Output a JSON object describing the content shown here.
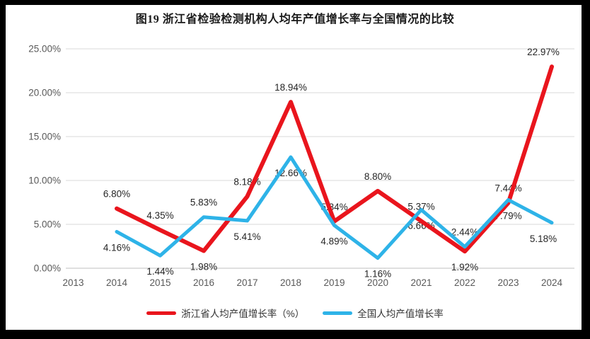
{
  "page": {
    "background": "#ffffff",
    "frame_color": "#000000"
  },
  "chart_data": {
    "type": "line",
    "title": "图19  浙江省检验检测机构人均年产值增长率与全国情况的比较",
    "x_categories": [
      "2013",
      "2014",
      "2015",
      "2016",
      "2017",
      "2018",
      "2019",
      "2020",
      "2021",
      "2022",
      "2023",
      "2024"
    ],
    "y_ticks": [
      "0.00%",
      "5.00%",
      "10.00%",
      "15.00%",
      "20.00%",
      "25.00%"
    ],
    "ylim": [
      0,
      25
    ],
    "grid": "horizontal",
    "legend_position": "bottom",
    "colors": {
      "gridline": "#d9d9d9",
      "axis_line": "#bfbfbf",
      "tick_label": "#595959",
      "data_label": "#262626",
      "title": "#1a1a1a"
    },
    "series": [
      {
        "name": "浙江省人均产值增长率（%）",
        "color": "#e9151d",
        "points": [
          {
            "year": "2014",
            "value": 6.8,
            "label": "6.80%",
            "label_pos": "above"
          },
          {
            "year": "2015",
            "value": 4.35,
            "label": "4.35%",
            "label_pos": "above"
          },
          {
            "year": "2016",
            "value": 1.98,
            "label": "1.98%",
            "label_pos": "below"
          },
          {
            "year": "2017",
            "value": 8.18,
            "label": "8.18%",
            "label_pos": "above"
          },
          {
            "year": "2018",
            "value": 18.94,
            "label": "18.94%",
            "label_pos": "above"
          },
          {
            "year": "2019",
            "value": 5.34,
            "label": "5.34%",
            "label_pos": "above"
          },
          {
            "year": "2020",
            "value": 8.8,
            "label": "8.80%",
            "label_pos": "above"
          },
          {
            "year": "2021",
            "value": 5.37,
            "label": "5.37%",
            "label_pos": "above"
          },
          {
            "year": "2022",
            "value": 1.92,
            "label": "1.92%",
            "label_pos": "below"
          },
          {
            "year": "2023",
            "value": 7.44,
            "label": "7.44%",
            "label_pos": "above"
          },
          {
            "year": "2024",
            "value": 22.97,
            "label": "22.97%",
            "label_pos": "above"
          }
        ]
      },
      {
        "name": "全国人均产值增长率",
        "color": "#2eb3e8",
        "points": [
          {
            "year": "2014",
            "value": 4.16,
            "label": "4.16%",
            "label_pos": "below"
          },
          {
            "year": "2015",
            "value": 1.44,
            "label": "1.44%",
            "label_pos": "below"
          },
          {
            "year": "2016",
            "value": 5.83,
            "label": "5.83%",
            "label_pos": "above"
          },
          {
            "year": "2017",
            "value": 5.41,
            "label": "5.41%",
            "label_pos": "below"
          },
          {
            "year": "2018",
            "value": 12.66,
            "label": "12.66%",
            "label_pos": "below"
          },
          {
            "year": "2019",
            "value": 4.89,
            "label": "4.89%",
            "label_pos": "below"
          },
          {
            "year": "2020",
            "value": 1.16,
            "label": "1.16%",
            "label_pos": "below"
          },
          {
            "year": "2021",
            "value": 6.66,
            "label": "6.66%",
            "label_pos": "below"
          },
          {
            "year": "2022",
            "value": 2.44,
            "label": "2.44%",
            "label_pos": "above"
          },
          {
            "year": "2023",
            "value": 7.79,
            "label": "7.79%",
            "label_pos": "below"
          },
          {
            "year": "2024",
            "value": 5.18,
            "label": "5.18%",
            "label_pos": "below"
          }
        ]
      }
    ]
  }
}
